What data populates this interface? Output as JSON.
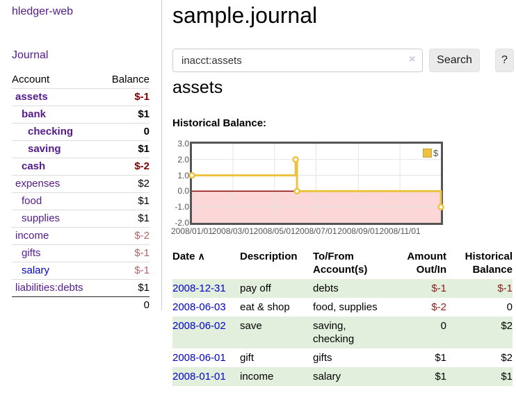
{
  "brand": "hledger-web",
  "nav": {
    "journal": "Journal"
  },
  "colors": {
    "accent_purple": "#551a8b",
    "link_blue": "#0000cc",
    "negative_strong": "#800000",
    "negative_muted": "#b06666",
    "negative_table": "#8b1c1c",
    "row_stripe_green": "#e2efdc",
    "chart_line": "#edc240",
    "chart_negative_region": "#fbd7d7",
    "chart_zero_line": "#8b0000"
  },
  "sidebar": {
    "headers": {
      "account": "Account",
      "balance": "Balance"
    },
    "rows": [
      {
        "account": "assets",
        "balance": "$-1",
        "indent": 0,
        "bold": true,
        "balance_class": "neg-strong",
        "link_color": "purple"
      },
      {
        "account": "bank",
        "balance": "$1",
        "indent": 1,
        "bold": true,
        "balance_class": "",
        "link_color": "purple"
      },
      {
        "account": "checking",
        "balance": "0",
        "indent": 2,
        "bold": true,
        "balance_class": "",
        "link_color": "purple"
      },
      {
        "account": "saving",
        "balance": "$1",
        "indent": 2,
        "bold": true,
        "balance_class": "",
        "link_color": "purple"
      },
      {
        "account": "cash",
        "balance": "$-2",
        "indent": 1,
        "bold": true,
        "balance_class": "neg-strong",
        "link_color": "purple"
      },
      {
        "account": "expenses",
        "balance": "$2",
        "indent": 0,
        "bold": false,
        "balance_class": "",
        "link_color": "purple"
      },
      {
        "account": "food",
        "balance": "$1",
        "indent": 1,
        "bold": false,
        "balance_class": "",
        "link_color": "purple"
      },
      {
        "account": "supplies",
        "balance": "$1",
        "indent": 1,
        "bold": false,
        "balance_class": "",
        "link_color": "purple"
      },
      {
        "account": "income",
        "balance": "$-2",
        "indent": 0,
        "bold": false,
        "balance_class": "neg-muted",
        "link_color": "purple"
      },
      {
        "account": "gifts",
        "balance": "$-1",
        "indent": 1,
        "bold": false,
        "balance_class": "neg-muted",
        "link_color": "purple"
      },
      {
        "account": "salary",
        "balance": "$-1",
        "indent": 1,
        "bold": false,
        "balance_class": "neg-muted",
        "link_color": "blue"
      },
      {
        "account": "liabilities:debts",
        "balance": "$1",
        "indent": 0,
        "bold": false,
        "balance_class": "",
        "link_color": "purple"
      }
    ],
    "total": "0"
  },
  "main": {
    "title": "sample.journal",
    "search": {
      "value": "inacct:assets",
      "clear_icon": "×",
      "search_button": "Search",
      "help_button": "?"
    },
    "account_heading": "assets",
    "chart_title": "Historical Balance:"
  },
  "chart_data": {
    "type": "line",
    "step": true,
    "title": "Historical Balance of assets",
    "legend": [
      {
        "label": "$",
        "color": "#edc240"
      }
    ],
    "legend_position": "top-right",
    "series": [
      {
        "name": "$",
        "color": "#edc240",
        "points": [
          {
            "date": "2008/01/01",
            "day": 0,
            "value": 1
          },
          {
            "date": "2008/06/01",
            "day": 152,
            "value": 2
          },
          {
            "date": "2008/06/03",
            "day": 154,
            "value": 0
          },
          {
            "date": "2008/12/31",
            "day": 365,
            "value": -1
          }
        ]
      }
    ],
    "x_ticks": [
      {
        "label": "2008/01/01",
        "day": 0
      },
      {
        "label": "2008/03/01",
        "day": 60
      },
      {
        "label": "2008/05/01",
        "day": 121
      },
      {
        "label": "2008/07/01",
        "day": 182
      },
      {
        "label": "2008/09/01",
        "day": 244
      },
      {
        "label": "2008/11/01",
        "day": 305
      }
    ],
    "y_ticks": [
      {
        "label": "3.0",
        "value": 3
      },
      {
        "label": "2.0",
        "value": 2
      },
      {
        "label": "1.0",
        "value": 1
      },
      {
        "label": "0.0",
        "value": 0
      },
      {
        "label": "-1.0",
        "value": -1
      },
      {
        "label": "-2.0",
        "value": -2
      }
    ],
    "x_max_day": 365,
    "ylim": [
      -2,
      3
    ],
    "grid": true,
    "negative_region_color": "#fbd7d7",
    "zero_line_color": "#8b0000"
  },
  "register": {
    "headers": {
      "date": "Date",
      "sort_asc_icon": "∧",
      "description": "Description",
      "tofrom_line1": "To/From",
      "tofrom_line2": "Account(s)",
      "amount_line1": "Amount",
      "amount_line2": "Out/In",
      "balance_line1": "Historical",
      "balance_line2": "Balance"
    },
    "rows": [
      {
        "date": "2008-12-31",
        "description": "pay off",
        "accounts_lines": [
          "debts"
        ],
        "amount": "$-1",
        "balance": "$-1",
        "amount_negative": true,
        "balance_negative": true
      },
      {
        "date": "2008-06-03",
        "description": "eat & shop",
        "accounts_lines": [
          "food, supplies"
        ],
        "amount": "$-2",
        "balance": "0",
        "amount_negative": true,
        "balance_negative": false
      },
      {
        "date": "2008-06-02",
        "description": "save",
        "accounts_lines": [
          "saving,",
          "checking"
        ],
        "amount": "0",
        "balance": "$2",
        "amount_negative": false,
        "balance_negative": false
      },
      {
        "date": "2008-06-01",
        "description": "gift",
        "accounts_lines": [
          "gifts"
        ],
        "amount": "$1",
        "balance": "$2",
        "amount_negative": false,
        "balance_negative": false
      },
      {
        "date": "2008-01-01",
        "description": "income",
        "accounts_lines": [
          "salary"
        ],
        "amount": "$1",
        "balance": "$1",
        "amount_negative": false,
        "balance_negative": false
      }
    ]
  }
}
